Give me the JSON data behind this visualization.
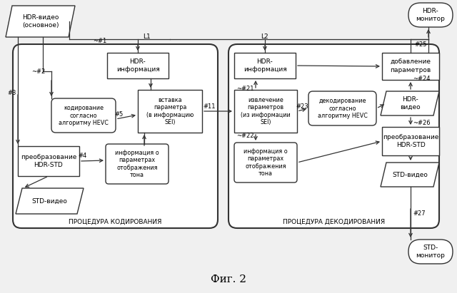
{
  "bg_color": "#f0f0f0",
  "title": "Фиг. 2",
  "encoding_label": "ПРОЦЕДУРА КОДИРОВАНИЯ",
  "decoding_label": "ПРОЦЕДУРА ДЕКОДИРОВАНИЯ",
  "fs": 6.5,
  "fs_small": 5.8,
  "fs_label": 6.5,
  "fs_title": 11
}
